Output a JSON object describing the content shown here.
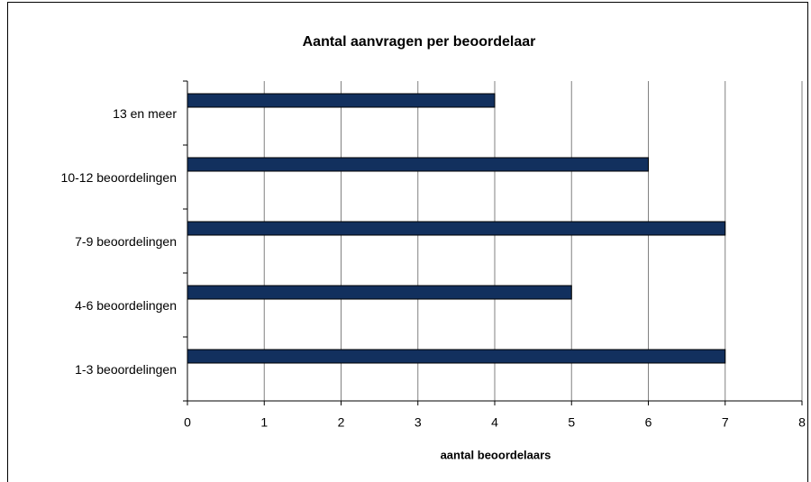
{
  "chart_data": {
    "type": "barh",
    "title": "Aantal aanvragen per beoordelaar",
    "categories": [
      "13 en meer",
      "10-12 beoordelingen",
      "7-9 beoordelingen",
      "4-6 beoordelingen",
      "1-3 beoordelingen"
    ],
    "values": [
      4,
      6,
      7,
      5,
      7
    ],
    "color": "#12305e",
    "xlabel": "aantal beoordelaars",
    "xlim": [
      0,
      8
    ],
    "xticks": [
      0,
      1,
      2,
      3,
      4,
      5,
      6,
      7,
      8
    ],
    "grid": true
  }
}
